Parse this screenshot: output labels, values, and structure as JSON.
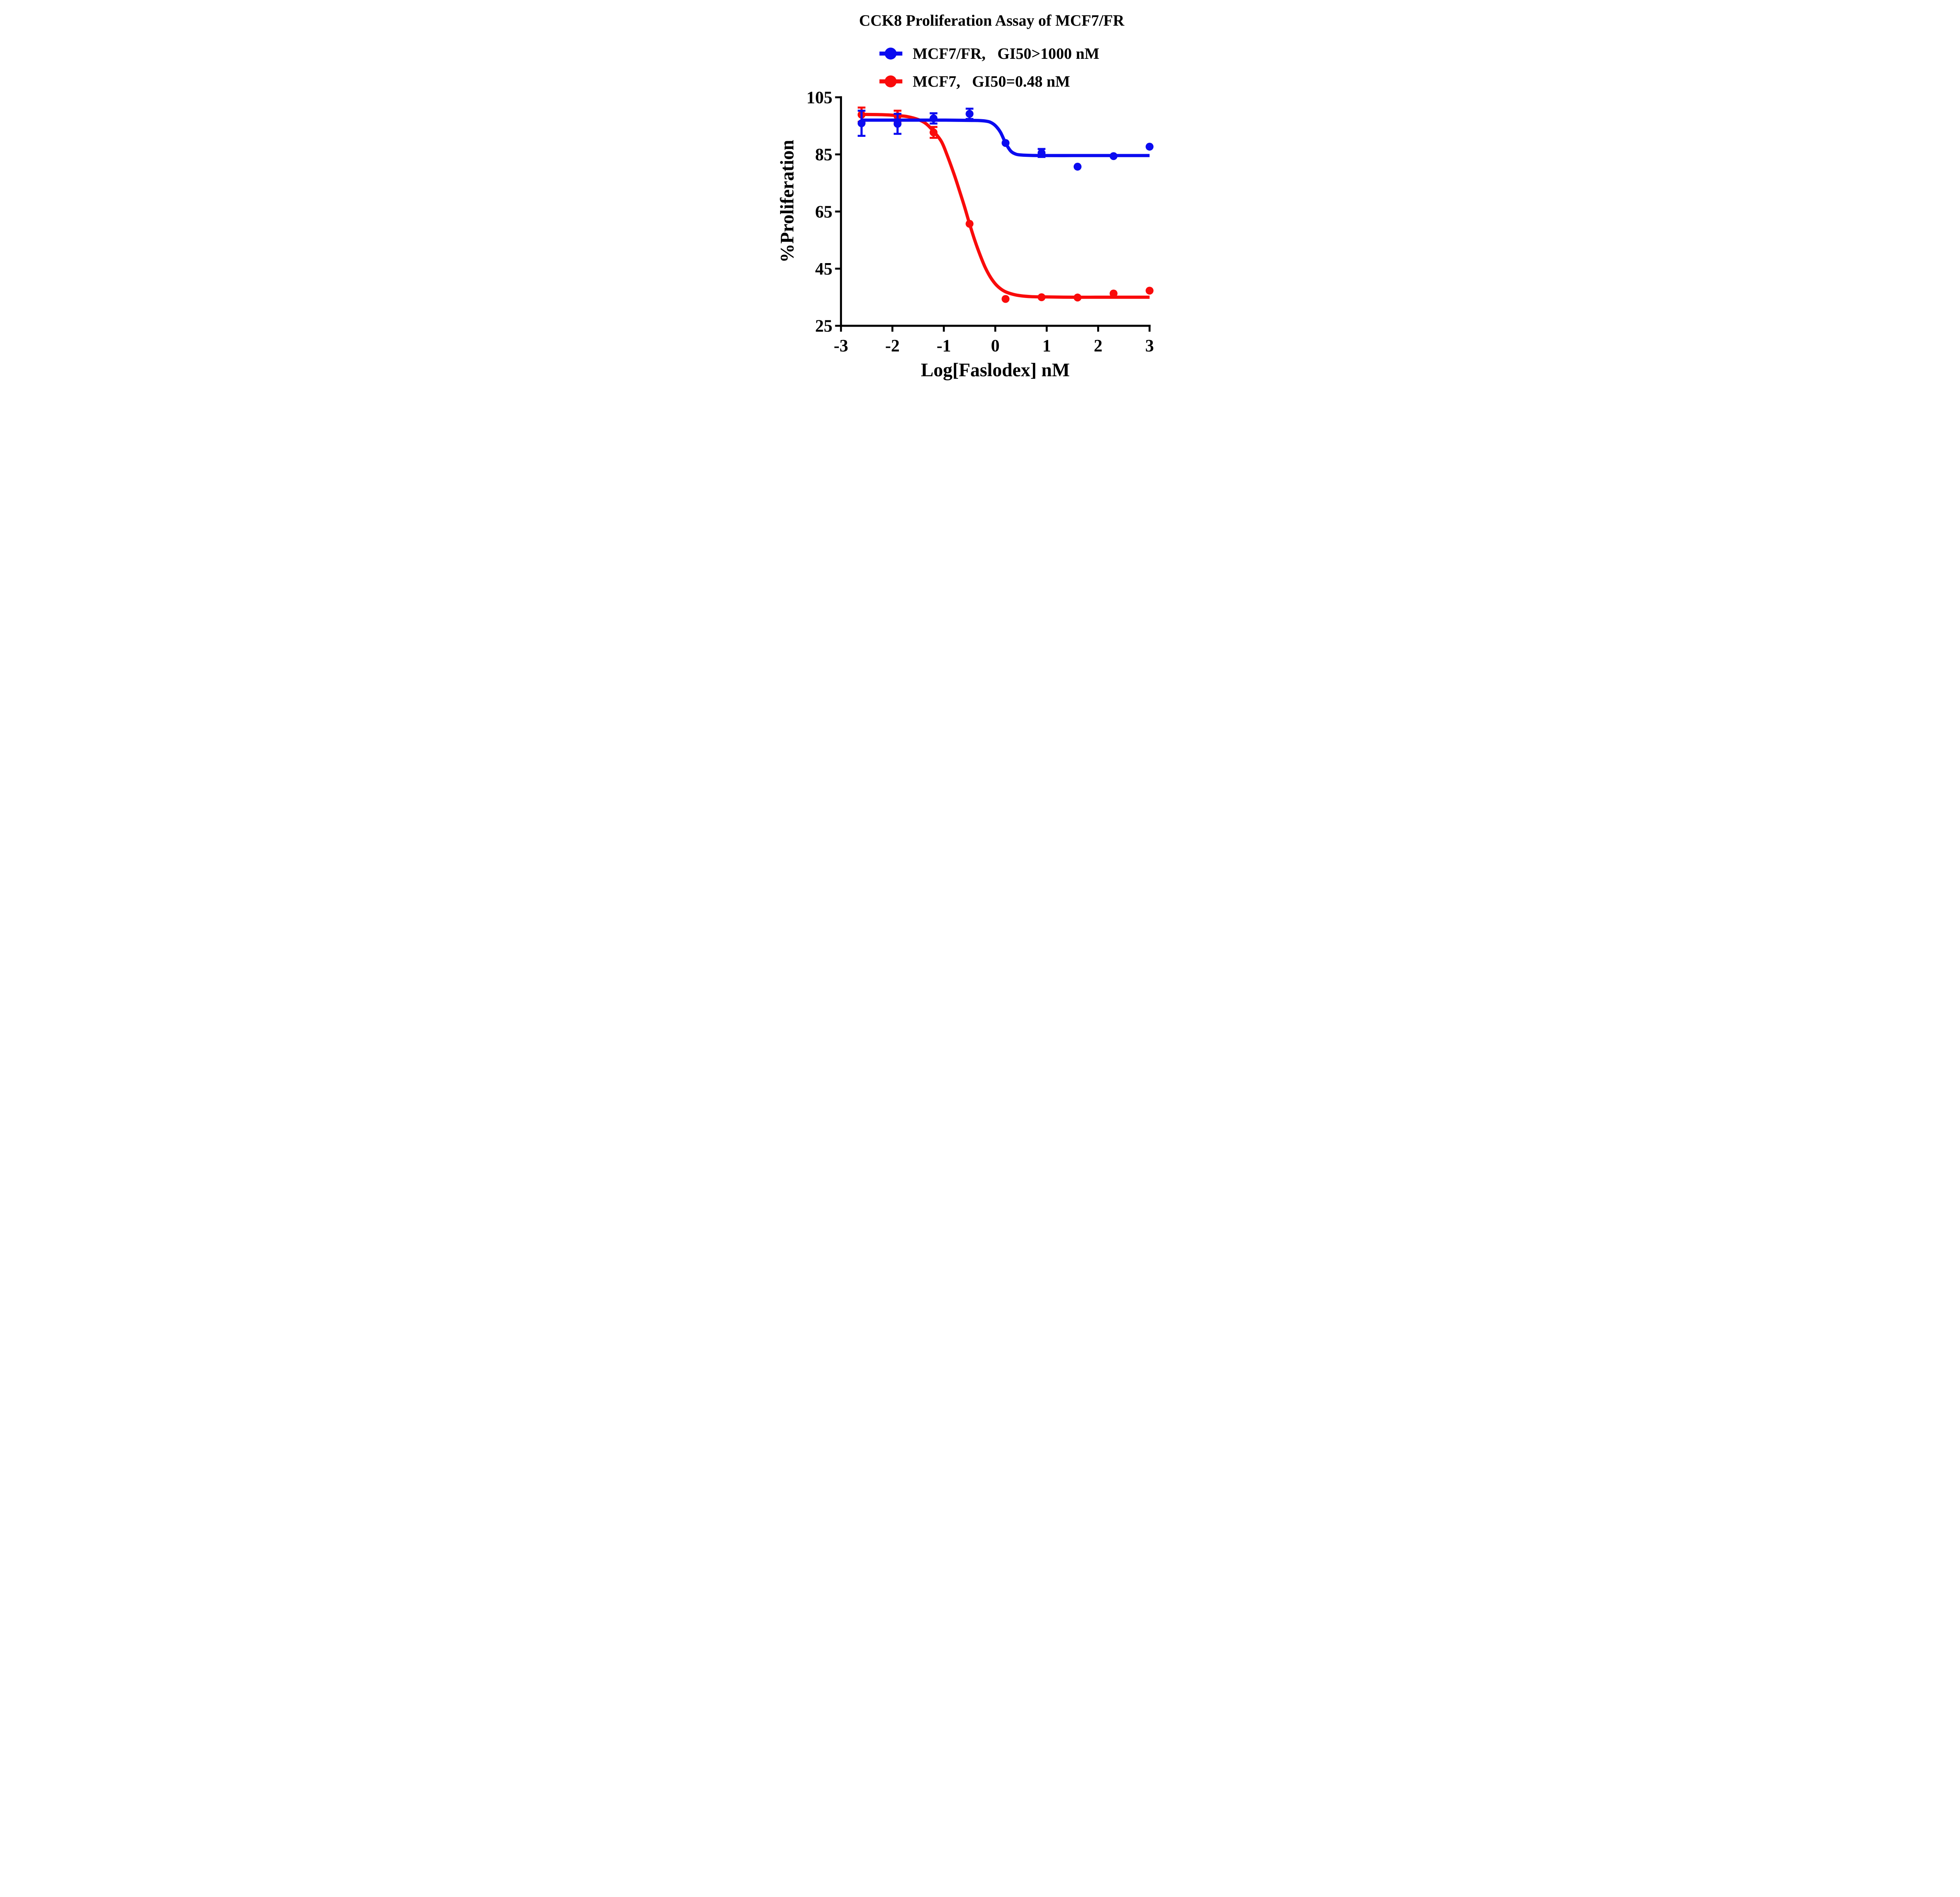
{
  "figure": {
    "background": "#ffffff",
    "axis_color": "#000000"
  },
  "legend": {
    "position": "top",
    "items": [
      {
        "series": "MCF7/FR",
        "gi50": "GI50>1000 nM",
        "label": "MCF7/FR,   GI50>1000 nM",
        "color": "#0b0bf0"
      },
      {
        "series": "MCF7",
        "gi50": "GI50=0.48 nM",
        "label": "MCF7,   GI50=0.48 nM",
        "color": "#f90b0b"
      }
    ]
  },
  "chart_data": {
    "type": "line",
    "title": "CCK8 Proliferation Assay of MCF7/FR",
    "xlabel": "Log[Faslodex] nM",
    "ylabel": "%Proliferation",
    "xlim": [
      -3,
      3
    ],
    "ylim": [
      25,
      105
    ],
    "xticks": [
      -3,
      -2,
      -1,
      0,
      1,
      2,
      3
    ],
    "yticks": [
      105,
      85,
      65,
      45,
      25
    ],
    "grid": false,
    "legend_position": "top",
    "series": [
      {
        "name": "MCF7/FR",
        "gi50_label": "GI50>1000 nM",
        "color": "#0b0bf0",
        "x": [
          -2.6,
          -1.9,
          -1.2,
          -0.5,
          0.2,
          0.9,
          1.6,
          2.3,
          3.0
        ],
        "y": [
          95.9,
          95.7,
          97.6,
          99.2,
          89.0,
          85.5,
          80.7,
          84.4,
          87.7
        ],
        "err": [
          4.4,
          3.5,
          1.8,
          1.8,
          0,
          1.4,
          0,
          0,
          0
        ],
        "fit_curve": {
          "x": [
            -2.6,
            -2.2,
            -1.8,
            -1.4,
            -1.0,
            -0.7,
            -0.45,
            -0.3,
            -0.2,
            -0.1,
            0.0,
            0.1,
            0.2,
            0.3,
            0.4,
            0.5,
            0.7,
            1.0,
            1.5,
            2.0,
            2.5,
            3.0
          ],
          "y": [
            97.0,
            97.0,
            97.0,
            97.0,
            97.0,
            96.95,
            96.9,
            96.85,
            96.7,
            96.3,
            95.1,
            92.8,
            89.0,
            86.2,
            85.1,
            84.8,
            84.65,
            84.6,
            84.6,
            84.6,
            84.6,
            84.6
          ]
        }
      },
      {
        "name": "MCF7",
        "gi50_label": "GI50=0.48 nM",
        "color": "#f90b0b",
        "x": [
          -2.6,
          -1.9,
          -1.2,
          -0.5,
          0.2,
          0.9,
          1.6,
          2.3,
          3.0
        ],
        "y": [
          98.9,
          98.4,
          92.7,
          60.7,
          34.4,
          35.0,
          34.9,
          36.3,
          37.3
        ],
        "err": [
          2.5,
          1.9,
          1.9,
          0,
          0,
          0,
          0,
          0,
          0
        ],
        "fit_curve": {
          "x": [
            -2.6,
            -2.2,
            -1.9,
            -1.7,
            -1.5,
            -1.35,
            -1.2,
            -1.05,
            -0.95,
            -0.8,
            -0.7,
            -0.6,
            -0.5,
            -0.4,
            -0.3,
            -0.2,
            -0.1,
            0.0,
            0.1,
            0.2,
            0.35,
            0.5,
            0.7,
            1.0,
            1.5,
            2.0,
            2.5,
            3.0
          ],
          "y": [
            99.0,
            98.9,
            98.6,
            98.2,
            97.2,
            95.8,
            93.1,
            89.6,
            85.4,
            78.0,
            72.5,
            66.8,
            60.7,
            55.0,
            50.0,
            45.6,
            42.2,
            39.7,
            38.0,
            36.9,
            36.0,
            35.5,
            35.2,
            35.1,
            35.0,
            35.0,
            35.0,
            35.0
          ]
        }
      }
    ]
  }
}
